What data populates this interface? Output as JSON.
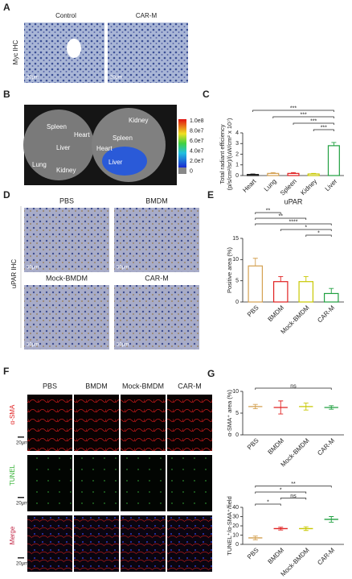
{
  "panels": {
    "A": {
      "letter": "A",
      "columns": [
        "Control",
        "CAR-M"
      ],
      "row_label": "Myc IHC",
      "scale_bars": [
        "20μm",
        "20μm"
      ]
    },
    "B": {
      "letter": "B",
      "left_organs": [
        "Spleen",
        "Heart",
        "Liver",
        "Lung",
        "Kidney"
      ],
      "right_organs": [
        "Kidney",
        "Spleen",
        "Heart",
        "Liver"
      ],
      "colorbar_labels": [
        "1.0e8",
        "8.0e7",
        "6.0e7",
        "4.0e7",
        "2.0e7",
        "0"
      ]
    },
    "C": {
      "letter": "C"
    },
    "D": {
      "letter": "D",
      "columns": [
        "PBS",
        "BMDM",
        "Mock-BMDM",
        "CAR-M"
      ],
      "row_label": "uPAR IHC",
      "scale_bars": [
        "50μm",
        "50μm",
        "50μm",
        "50μm"
      ]
    },
    "E": {
      "letter": "E"
    },
    "F": {
      "letter": "F",
      "columns": [
        "PBS",
        "BMDM",
        "Mock-BMDM",
        "CAR-M"
      ],
      "rows": [
        "α-SMA",
        "TUNEL",
        "Merge"
      ],
      "scale_bars": [
        "20μm",
        "20μm",
        "20μm"
      ]
    },
    "G": {
      "letter": "G"
    }
  },
  "chart_data": [
    {
      "type": "bar",
      "ylabel": [
        "Total radiant efficiency",
        "(p/s/cm²/sr)/(uW/cm² x 10⁷)"
      ],
      "categories": [
        "Heart",
        "Lung",
        "Spleen",
        "Kidney",
        "Liver"
      ],
      "values": [
        0.1,
        0.2,
        0.2,
        0.15,
        2.8
      ],
      "errors": [
        0.05,
        0.08,
        0.08,
        0.05,
        0.3
      ],
      "colors": [
        "#111111",
        "#d4a050",
        "#e02020",
        "#c8c800",
        "#20a040"
      ],
      "ylim": [
        0,
        4
      ],
      "yticks": [
        0,
        1,
        2,
        3,
        4
      ],
      "significance": [
        {
          "label": "***",
          "pair": [
            "Heart",
            "Liver"
          ]
        },
        {
          "label": "***",
          "pair": [
            "Lung",
            "Liver"
          ]
        },
        {
          "label": "***",
          "pair": [
            "Spleen",
            "Liver"
          ]
        },
        {
          "label": "***",
          "pair": [
            "Kidney",
            "Liver"
          ]
        }
      ]
    },
    {
      "type": "bar",
      "title": "uPAR",
      "ylabel": [
        "Positive area (%)"
      ],
      "categories": [
        "PBS",
        "BMDM",
        "Mock-BMDM",
        "CAR-M"
      ],
      "values": [
        8.5,
        4.8,
        4.8,
        2.0
      ],
      "errors": [
        1.8,
        1.2,
        1.2,
        1.2
      ],
      "colors": [
        "#d4a050",
        "#e02020",
        "#c8c800",
        "#20a040"
      ],
      "ylim": [
        0,
        15
      ],
      "yticks": [
        0,
        5,
        10,
        15
      ],
      "significance": [
        {
          "label": "**",
          "pair": [
            "PBS",
            "BMDM"
          ]
        },
        {
          "label": "**",
          "pair": [
            "PBS",
            "Mock-BMDM"
          ]
        },
        {
          "label": "****",
          "pair": [
            "PBS",
            "CAR-M"
          ]
        },
        {
          "label": "*",
          "pair": [
            "BMDM",
            "CAR-M"
          ]
        },
        {
          "label": "*",
          "pair": [
            "Mock-BMDM",
            "CAR-M"
          ]
        }
      ]
    },
    {
      "type": "dot",
      "ylabel": [
        "α-SMA⁺ area (%)"
      ],
      "categories": [
        "PBS",
        "BMDM",
        "Mock-BMDM",
        "CAR-M"
      ],
      "values": [
        6.5,
        6.3,
        6.5,
        6.3
      ],
      "errors": [
        0.5,
        1.5,
        0.8,
        0.4
      ],
      "colors": [
        "#d4a050",
        "#e02020",
        "#c8c800",
        "#20a040"
      ],
      "ylim": [
        0,
        10
      ],
      "yticks": [
        0,
        5,
        10
      ],
      "significance": [
        {
          "label": "ns",
          "pair": [
            "PBS",
            "CAR-M"
          ]
        }
      ]
    },
    {
      "type": "dot",
      "ylabel": [
        "TUNEL⁺/α-SMA⁺/field"
      ],
      "categories": [
        "PBS",
        "BMDM",
        "Mock-BMDM",
        "CAR-M"
      ],
      "values": [
        7,
        17,
        17,
        27
      ],
      "errors": [
        2,
        1.5,
        2,
        3
      ],
      "colors": [
        "#d4a050",
        "#e02020",
        "#c8c800",
        "#20a040"
      ],
      "ylim": [
        0,
        40
      ],
      "yticks": [
        0,
        10,
        20,
        30,
        40
      ],
      "significance": [
        {
          "label": "**",
          "pair": [
            "PBS",
            "CAR-M"
          ]
        },
        {
          "label": "*",
          "pair": [
            "PBS",
            "Mock-BMDM"
          ]
        },
        {
          "label": "ns",
          "pair": [
            "BMDM",
            "Mock-BMDM"
          ]
        },
        {
          "label": "*",
          "pair": [
            "PBS",
            "BMDM"
          ]
        }
      ]
    }
  ]
}
